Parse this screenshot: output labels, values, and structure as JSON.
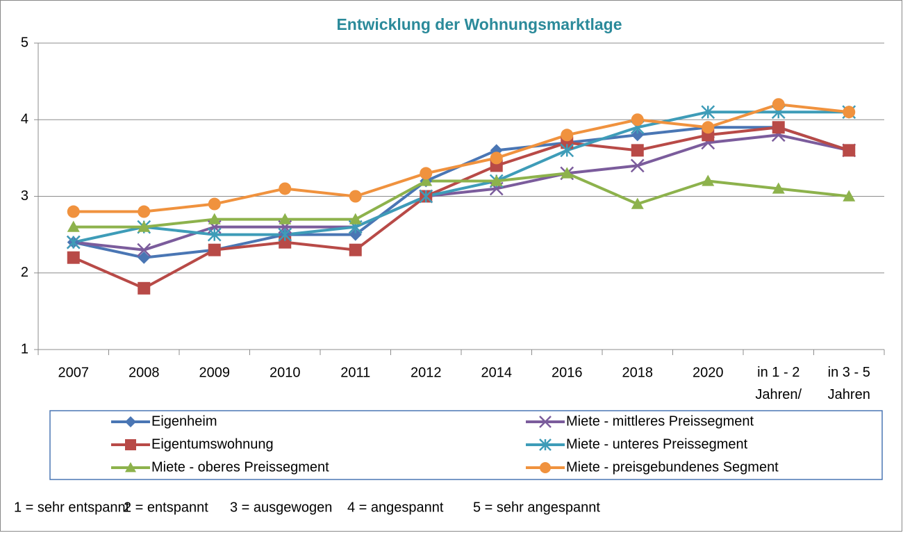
{
  "chart_data": {
    "type": "line",
    "title": "Entwicklung der Wohnungsmarktlage",
    "categories": [
      "2007",
      "2008",
      "2009",
      "2010",
      "2011",
      "2012",
      "2014",
      "2016",
      "2018",
      "2020",
      "in 1 - 2 Jahren/",
      "in 3 - 5 Jahren"
    ],
    "ylim": [
      1,
      5
    ],
    "yticks": [
      1,
      2,
      3,
      4,
      5
    ],
    "grid": true,
    "series": [
      {
        "name": "Eigenheim",
        "color": "#4a76b4",
        "marker": "diamond",
        "values": [
          2.4,
          2.2,
          2.3,
          2.5,
          2.5,
          3.2,
          3.6,
          3.7,
          3.8,
          3.9,
          3.9,
          3.6
        ]
      },
      {
        "name": "Miete - mittleres Preissegment",
        "color": "#7b5c9c",
        "marker": "x",
        "values": [
          2.4,
          2.3,
          2.6,
          2.6,
          2.6,
          3.0,
          3.1,
          3.3,
          3.4,
          3.7,
          3.8,
          3.6
        ]
      },
      {
        "name": "Eigentumswohnung",
        "color": "#b84a47",
        "marker": "square",
        "values": [
          2.2,
          1.8,
          2.3,
          2.4,
          2.3,
          3.0,
          3.4,
          3.7,
          3.6,
          3.8,
          3.9,
          3.6
        ]
      },
      {
        "name": "Miete - unteres Preissegment",
        "color": "#3e9cb8",
        "marker": "asterisk",
        "values": [
          2.4,
          2.6,
          2.5,
          2.5,
          2.6,
          3.0,
          3.2,
          3.6,
          3.9,
          4.1,
          4.1,
          4.1
        ]
      },
      {
        "name": "Miete - oberes Preissegment",
        "color": "#8db24c",
        "marker": "triangle",
        "values": [
          2.6,
          2.6,
          2.7,
          2.7,
          2.7,
          3.2,
          3.2,
          3.3,
          2.9,
          3.2,
          3.1,
          3.0
        ]
      },
      {
        "name": "Miete - preisgebundenes Segment",
        "color": "#f0923e",
        "marker": "circle",
        "values": [
          2.8,
          2.8,
          2.9,
          3.1,
          3.0,
          3.3,
          3.5,
          3.8,
          4.0,
          3.9,
          4.2,
          4.1
        ]
      }
    ],
    "legend": "bottom",
    "footnote": [
      "1 = sehr entspannt",
      "2 = entspannt",
      "3 = ausgewogen",
      "4 = angespannt",
      "5 = sehr angespannt"
    ]
  }
}
